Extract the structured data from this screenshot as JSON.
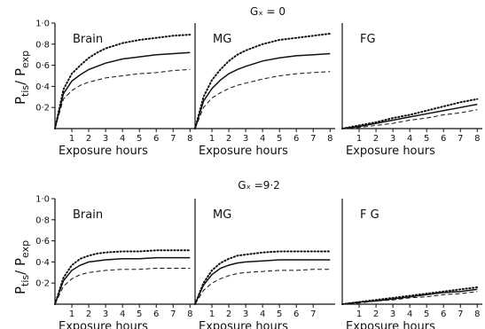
{
  "rows": [
    {
      "label": "Gₓ = 0",
      "ylabel_main": "P",
      "ylabel_sub1": "tis",
      "ylabel_mid": "/ P",
      "ylabel_sub2": "exp"
    },
    {
      "label": "Gₓ =9·2",
      "ylabel_main": "P",
      "ylabel_sub1": "tis",
      "ylabel_mid": "/ P",
      "ylabel_sub2": "exp"
    }
  ],
  "chart_data": [
    {
      "type": "line",
      "row": 0,
      "title": "Brain",
      "xlabel": "Exposure hours",
      "xlim": [
        0,
        8.3
      ],
      "ylim": [
        0,
        1.0
      ],
      "xticks": [
        "1",
        "2",
        "3",
        "4",
        "5",
        "6",
        "7",
        "8"
      ],
      "yticks": [
        "0·2",
        "0·4",
        "0·6",
        "0·8",
        "1·0"
      ],
      "x": [
        0,
        0.5,
        1,
        1.5,
        2,
        2.5,
        3,
        4,
        5,
        6,
        7,
        8
      ],
      "series": [
        {
          "style": "dotted",
          "values": [
            0,
            0.37,
            0.52,
            0.6,
            0.67,
            0.72,
            0.76,
            0.81,
            0.84,
            0.86,
            0.88,
            0.89
          ]
        },
        {
          "style": "solid",
          "values": [
            0,
            0.33,
            0.45,
            0.51,
            0.56,
            0.59,
            0.62,
            0.66,
            0.68,
            0.7,
            0.71,
            0.72
          ]
        },
        {
          "style": "dashed",
          "values": [
            0,
            0.28,
            0.36,
            0.41,
            0.44,
            0.46,
            0.48,
            0.5,
            0.52,
            0.53,
            0.55,
            0.56
          ]
        }
      ]
    },
    {
      "type": "line",
      "row": 0,
      "title": "MG",
      "xlabel": "Exposure hours",
      "xlim": [
        0,
        8.3
      ],
      "ylim": [
        0,
        1.0
      ],
      "xticks": [
        "1",
        "2",
        "3",
        "4",
        "5",
        "6",
        "7",
        "8"
      ],
      "yticks": [],
      "x": [
        0,
        0.5,
        1,
        1.5,
        2,
        2.5,
        3,
        4,
        5,
        6,
        7,
        8
      ],
      "series": [
        {
          "style": "dotted",
          "values": [
            0,
            0.3,
            0.46,
            0.56,
            0.64,
            0.7,
            0.74,
            0.8,
            0.84,
            0.86,
            0.88,
            0.9
          ]
        },
        {
          "style": "solid",
          "values": [
            0,
            0.26,
            0.38,
            0.46,
            0.52,
            0.56,
            0.59,
            0.64,
            0.67,
            0.69,
            0.7,
            0.71
          ]
        },
        {
          "style": "dashed",
          "values": [
            0,
            0.2,
            0.29,
            0.34,
            0.38,
            0.41,
            0.43,
            0.47,
            0.5,
            0.52,
            0.53,
            0.54
          ]
        }
      ]
    },
    {
      "type": "line",
      "row": 0,
      "title": "FG",
      "xlabel": "Exposure hours",
      "xlim": [
        0,
        8.3
      ],
      "ylim": [
        0,
        1.0
      ],
      "xticks": [
        "1",
        "2",
        "3",
        "4",
        "5",
        "6",
        "7",
        "8"
      ],
      "yticks": [],
      "x": [
        0,
        1,
        2,
        3,
        4,
        5,
        6,
        7,
        8
      ],
      "series": [
        {
          "style": "dotted",
          "values": [
            0,
            0.03,
            0.06,
            0.1,
            0.13,
            0.17,
            0.21,
            0.25,
            0.28
          ]
        },
        {
          "style": "solid",
          "values": [
            0,
            0.02,
            0.05,
            0.08,
            0.11,
            0.14,
            0.17,
            0.2,
            0.23
          ]
        },
        {
          "style": "dashed",
          "values": [
            0,
            0.01,
            0.03,
            0.05,
            0.08,
            0.1,
            0.13,
            0.15,
            0.18
          ]
        }
      ]
    },
    {
      "type": "line",
      "row": 1,
      "title": "Brain",
      "xlabel": "Exposure hours",
      "xlim": [
        0,
        8.3
      ],
      "ylim": [
        0,
        1.0
      ],
      "xticks": [
        "1",
        "2",
        "3",
        "4",
        "5",
        "6",
        "7",
        "8"
      ],
      "yticks": [
        "0·2",
        "0·4",
        "0·6",
        "0·8",
        "1·0"
      ],
      "x": [
        0,
        0.5,
        1,
        1.5,
        2,
        2.5,
        3,
        4,
        5,
        6,
        7,
        8
      ],
      "series": [
        {
          "style": "dotted",
          "values": [
            0,
            0.25,
            0.37,
            0.43,
            0.46,
            0.48,
            0.49,
            0.5,
            0.5,
            0.51,
            0.51,
            0.51
          ]
        },
        {
          "style": "solid",
          "values": [
            0,
            0.22,
            0.32,
            0.37,
            0.4,
            0.41,
            0.42,
            0.43,
            0.43,
            0.44,
            0.44,
            0.44
          ]
        },
        {
          "style": "dashed",
          "values": [
            0,
            0.17,
            0.24,
            0.28,
            0.3,
            0.31,
            0.32,
            0.33,
            0.33,
            0.34,
            0.34,
            0.34
          ]
        }
      ]
    },
    {
      "type": "line",
      "row": 1,
      "title": "MG",
      "xlabel": "Exposure hours",
      "xlim": [
        0,
        8.3
      ],
      "ylim": [
        0,
        1.0
      ],
      "xticks": [
        "1",
        "2",
        "3",
        "4",
        "5",
        "6",
        "7"
      ],
      "yticks": [],
      "x": [
        0,
        0.5,
        1,
        1.5,
        2,
        2.5,
        3,
        4,
        5,
        6,
        7,
        8
      ],
      "series": [
        {
          "style": "dotted",
          "values": [
            0,
            0.2,
            0.32,
            0.39,
            0.43,
            0.46,
            0.47,
            0.49,
            0.5,
            0.5,
            0.5,
            0.5
          ]
        },
        {
          "style": "solid",
          "values": [
            0,
            0.18,
            0.28,
            0.34,
            0.37,
            0.39,
            0.4,
            0.41,
            0.42,
            0.42,
            0.42,
            0.42
          ]
        },
        {
          "style": "dashed",
          "values": [
            0,
            0.13,
            0.2,
            0.24,
            0.27,
            0.29,
            0.3,
            0.31,
            0.32,
            0.32,
            0.33,
            0.33
          ]
        }
      ]
    },
    {
      "type": "line",
      "row": 1,
      "title": "F G",
      "xlabel": "Exposure hours",
      "xlim": [
        0,
        8.3
      ],
      "ylim": [
        0,
        1.0
      ],
      "xticks": [
        "1",
        "2",
        "3",
        "4",
        "5",
        "6",
        "7",
        "8"
      ],
      "yticks": [],
      "x": [
        0,
        1,
        2,
        3,
        4,
        5,
        6,
        7,
        8
      ],
      "series": [
        {
          "style": "dotted",
          "values": [
            0,
            0.02,
            0.04,
            0.06,
            0.08,
            0.1,
            0.12,
            0.14,
            0.16
          ]
        },
        {
          "style": "solid",
          "values": [
            0,
            0.02,
            0.03,
            0.05,
            0.07,
            0.09,
            0.11,
            0.12,
            0.14
          ]
        },
        {
          "style": "dashed",
          "values": [
            0,
            0.01,
            0.03,
            0.04,
            0.06,
            0.07,
            0.09,
            0.1,
            0.12
          ]
        }
      ]
    }
  ]
}
